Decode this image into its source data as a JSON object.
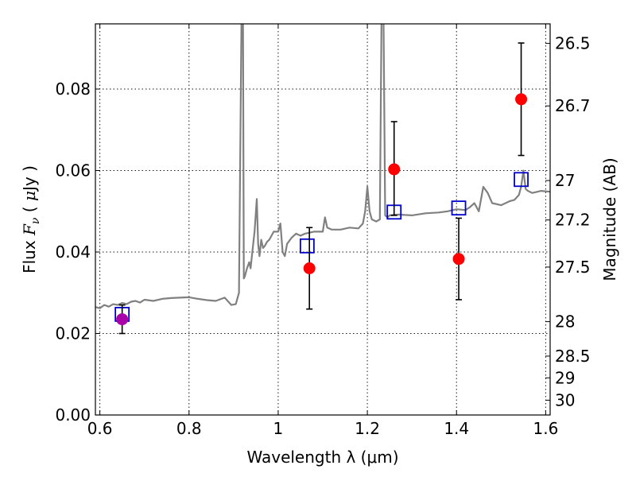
{
  "chart_data": {
    "type": "scatter",
    "xlabel": "Wavelength  λ (μm)",
    "ylabel_parts": {
      "pre": "Flux  ",
      "var": "F",
      "sub": "ν",
      "mid": "  ( ",
      "mu": "μ",
      "post": "Jy )"
    },
    "y2label": "Magnitude (AB)",
    "xlim": [
      0.59,
      1.61
    ],
    "ylim": [
      0.0,
      0.096
    ],
    "xticks": [
      0.6,
      0.8,
      1.0,
      1.2,
      1.4,
      1.6
    ],
    "xtick_labels": [
      "0.6",
      "0.8",
      "1",
      "1.2",
      "1.4",
      "1.6"
    ],
    "yticks": [
      0.0,
      0.02,
      0.04,
      0.06,
      0.08
    ],
    "ytick_labels": [
      "0.00",
      "0.02",
      "0.04",
      "0.06",
      "0.08"
    ],
    "mag_ticks": [
      26.5,
      26.7,
      27,
      27.2,
      27.5,
      28,
      28.5,
      29,
      30
    ],
    "mag_tick_labels": [
      "26.5",
      "26.7",
      "27",
      "27.2",
      "27.5",
      "28",
      "28.5",
      "29",
      "30"
    ],
    "grid": true,
    "series": [
      {
        "kind": "spectrum",
        "color": "#808080",
        "x": [
          0.59,
          0.6,
          0.61,
          0.62,
          0.63,
          0.64,
          0.65,
          0.66,
          0.67,
          0.68,
          0.69,
          0.7,
          0.72,
          0.74,
          0.76,
          0.78,
          0.8,
          0.82,
          0.84,
          0.86,
          0.88,
          0.895,
          0.905,
          0.912,
          0.918,
          0.9195,
          0.921,
          0.923,
          0.925,
          0.93,
          0.935,
          0.938,
          0.942,
          0.947,
          0.952,
          0.955,
          0.958,
          0.962,
          0.966,
          0.97,
          0.975,
          0.98,
          0.99,
          1.0,
          1.005,
          1.01,
          1.015,
          1.02,
          1.03,
          1.04,
          1.05,
          1.06,
          1.08,
          1.1,
          1.105,
          1.11,
          1.12,
          1.14,
          1.16,
          1.18,
          1.19,
          1.195,
          1.2,
          1.205,
          1.21,
          1.22,
          1.228,
          1.232,
          1.236,
          1.24,
          1.245,
          1.25,
          1.27,
          1.3,
          1.33,
          1.36,
          1.38,
          1.4,
          1.42,
          1.43,
          1.44,
          1.45,
          1.46,
          1.47,
          1.48,
          1.5,
          1.52,
          1.53,
          1.54,
          1.545,
          1.55,
          1.555,
          1.56,
          1.57,
          1.59,
          1.61
        ],
        "y": [
          0.0265,
          0.0262,
          0.027,
          0.0266,
          0.0272,
          0.027,
          0.0275,
          0.0272,
          0.0278,
          0.028,
          0.0276,
          0.0283,
          0.028,
          0.0285,
          0.0287,
          0.0288,
          0.0289,
          0.0285,
          0.0282,
          0.028,
          0.0288,
          0.027,
          0.0272,
          0.03,
          0.1,
          0.1,
          0.1,
          0.0335,
          0.034,
          0.036,
          0.0375,
          0.036,
          0.04,
          0.045,
          0.053,
          0.042,
          0.039,
          0.043,
          0.041,
          0.0415,
          0.0425,
          0.043,
          0.045,
          0.045,
          0.047,
          0.04,
          0.039,
          0.042,
          0.0435,
          0.0445,
          0.044,
          0.0445,
          0.045,
          0.045,
          0.0485,
          0.046,
          0.0455,
          0.0455,
          0.046,
          0.0458,
          0.047,
          0.05,
          0.056,
          0.05,
          0.048,
          0.0475,
          0.048,
          0.1,
          0.1,
          0.049,
          0.0485,
          0.049,
          0.0492,
          0.049,
          0.0495,
          0.0497,
          0.05,
          0.0505,
          0.0503,
          0.051,
          0.052,
          0.05,
          0.056,
          0.0545,
          0.052,
          0.0515,
          0.0525,
          0.0528,
          0.054,
          0.056,
          0.06,
          0.0555,
          0.055,
          0.0545,
          0.055,
          0.0548
        ]
      },
      {
        "kind": "squares",
        "color": "#0000cc",
        "x": [
          0.65,
          1.065,
          1.26,
          1.405,
          1.545
        ],
        "y": [
          0.0247,
          0.0415,
          0.0498,
          0.0508,
          0.0578
        ]
      },
      {
        "kind": "points",
        "color": "#ff0000",
        "first_color": "#aa00aa",
        "x": [
          0.65,
          1.07,
          1.26,
          1.405,
          1.545
        ],
        "y": [
          0.0235,
          0.036,
          0.0603,
          0.0383,
          0.0775
        ],
        "err_low": [
          0.0035,
          0.01,
          0.0113,
          0.01,
          0.0138
        ],
        "err_high": [
          0.0035,
          0.01,
          0.0117,
          0.01,
          0.0138
        ]
      }
    ]
  }
}
